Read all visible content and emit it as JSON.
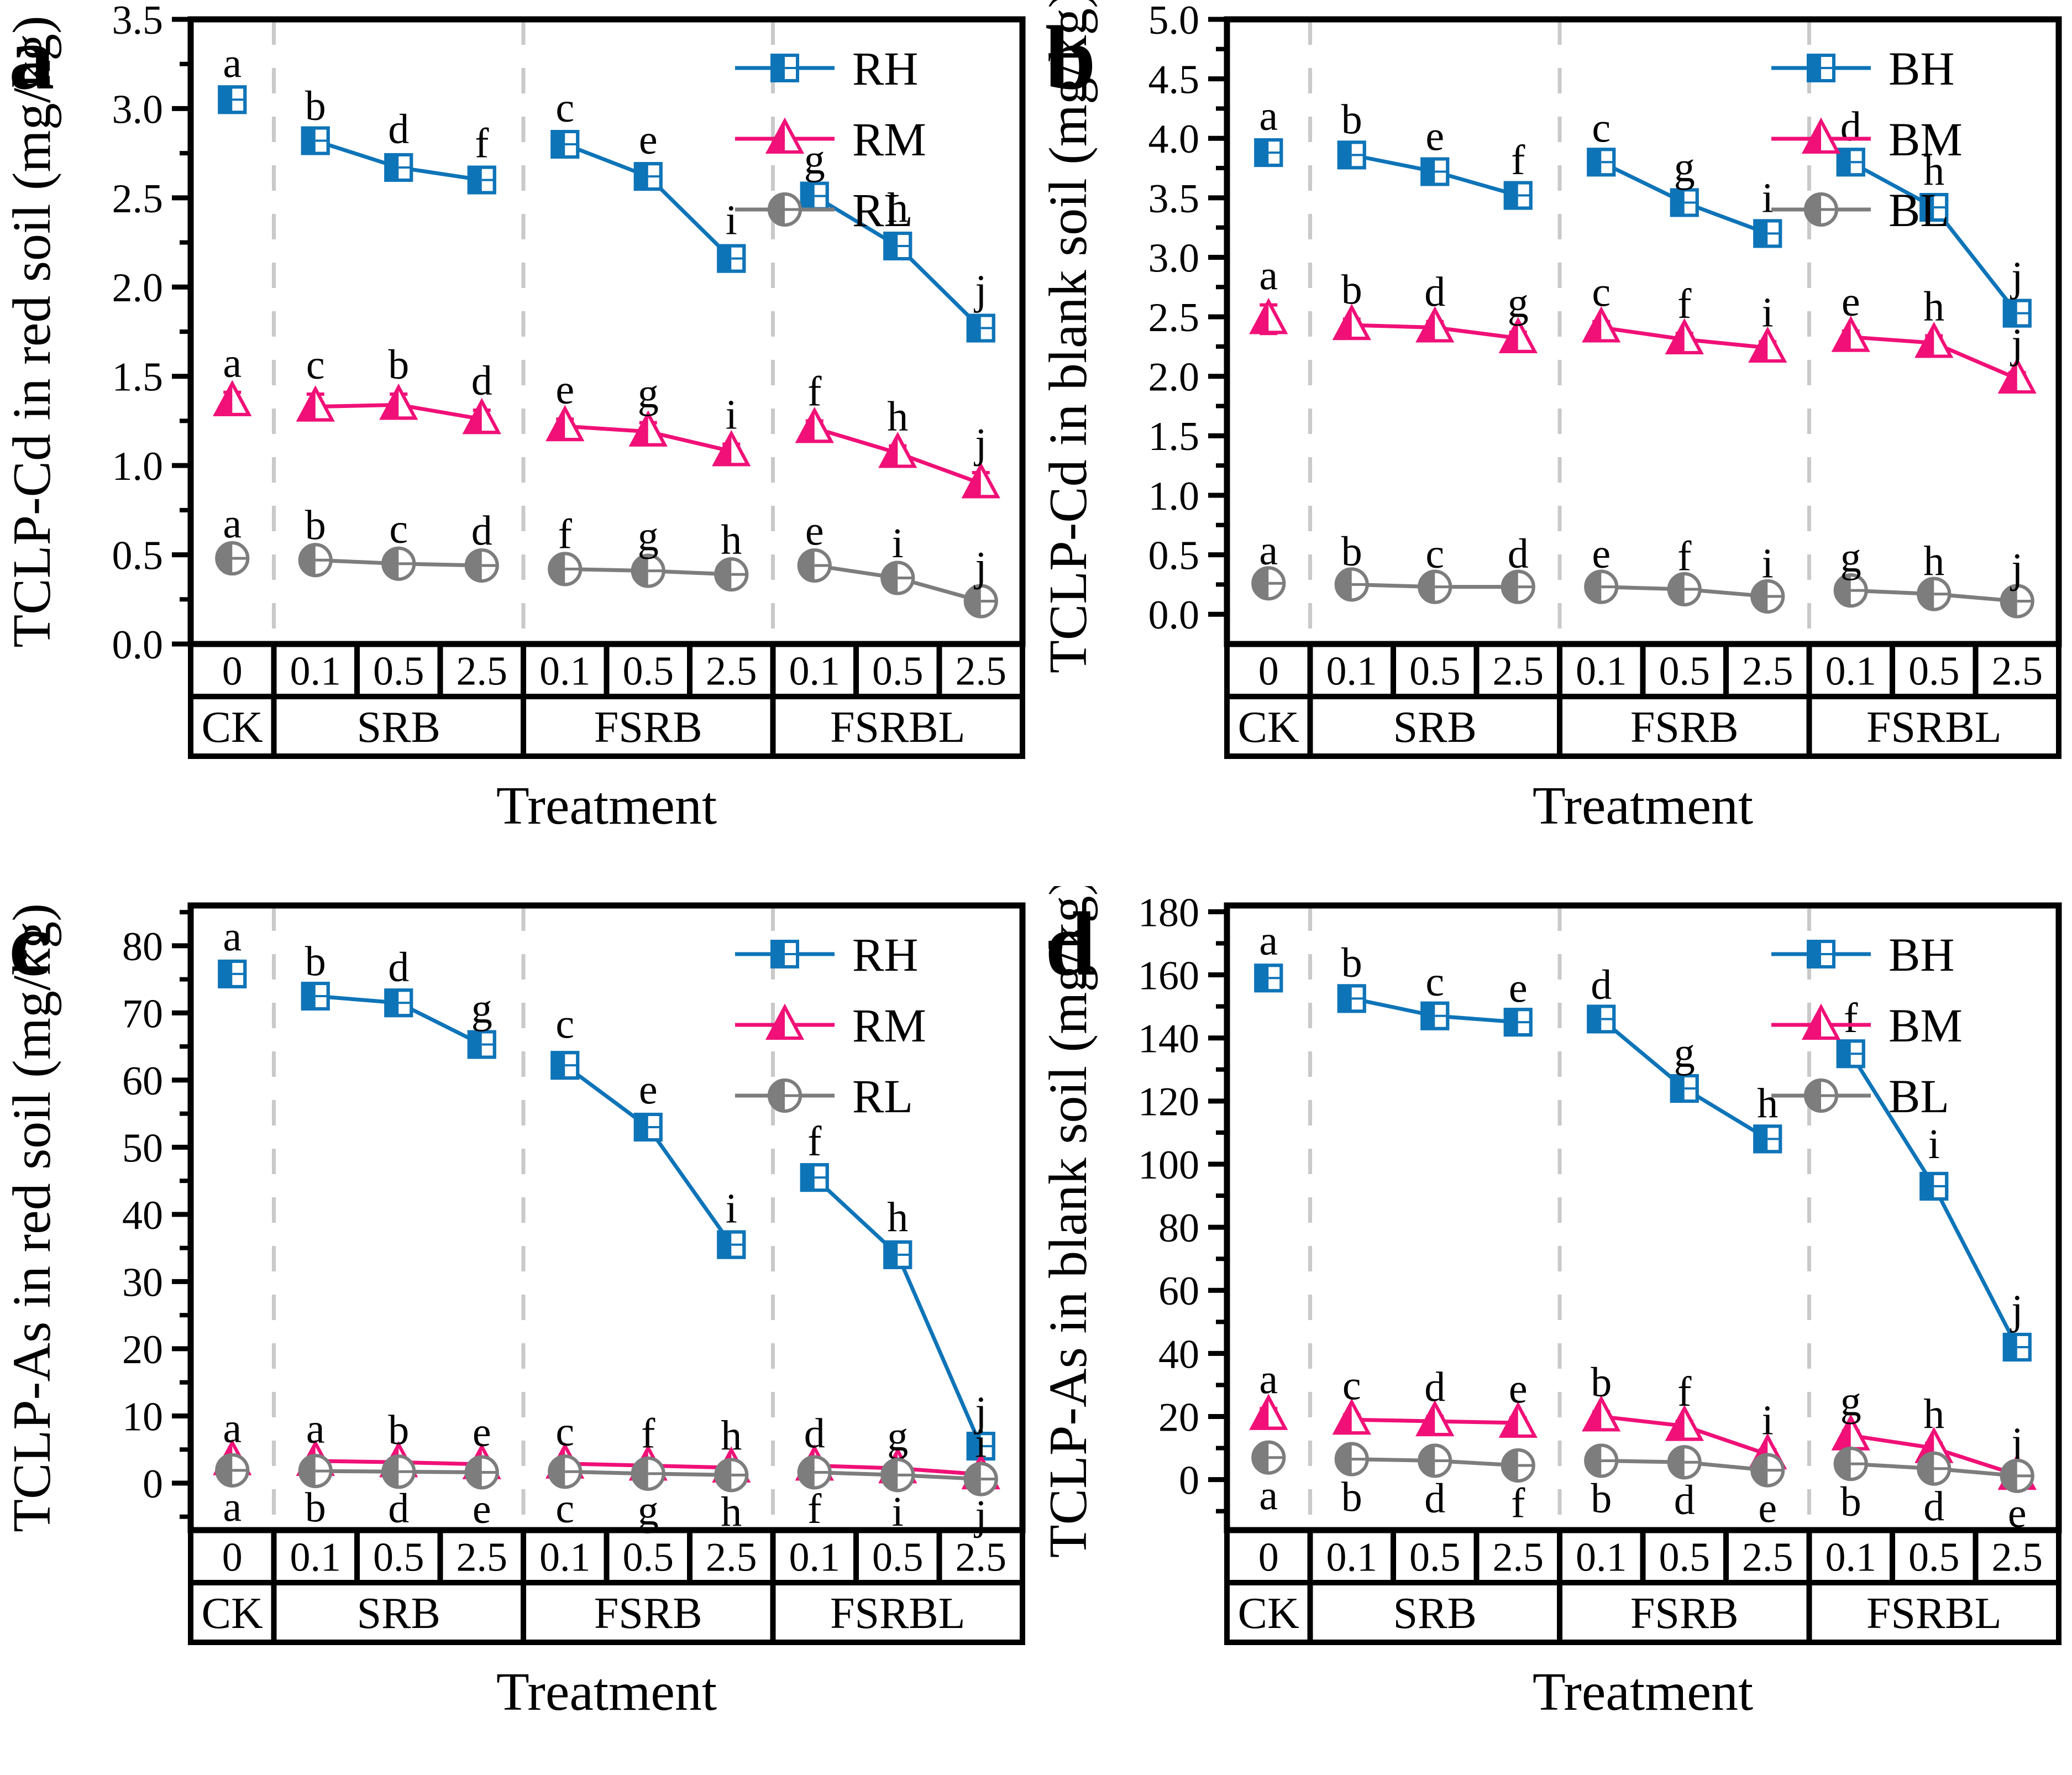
{
  "figure": {
    "x_axis_title": "Treatment",
    "group_row": [
      "CK",
      "SRB",
      "FSRB",
      "FSRBL"
    ],
    "dose_row": [
      "0",
      "0.1",
      "0.5",
      "2.5",
      "0.1",
      "0.5",
      "2.5",
      "0.1",
      "0.5",
      "2.5"
    ],
    "colors": {
      "high_series": "#0e74b8",
      "mid_series": "#f01077",
      "low_series": "#7d7d7d",
      "separator": "#c9c9c9",
      "axis": "#000000",
      "background": "#ffffff"
    }
  },
  "chart_data": [
    {
      "type": "line",
      "tag": "a",
      "ylabel": "TCLP-Cd in red soil (mg/kg)",
      "xlabel": "Treatment",
      "ylim": [
        0,
        3.5
      ],
      "ytick_max": 3.5,
      "ytick_step": 0.5,
      "ytick_decimals": 1,
      "grid": false,
      "legend_position": "top-right",
      "groups": [
        {
          "name": "CK",
          "doses": [
            "0"
          ]
        },
        {
          "name": "SRB",
          "doses": [
            "0.1",
            "0.5",
            "2.5"
          ]
        },
        {
          "name": "FSRB",
          "doses": [
            "0.1",
            "0.5",
            "2.5"
          ]
        },
        {
          "name": "FSRBL",
          "doses": [
            "0.1",
            "0.5",
            "2.5"
          ]
        }
      ],
      "series": [
        {
          "name": "RH",
          "marker": "square",
          "color": "#0e74b8",
          "letter_pos": "above",
          "values": [
            3.05,
            2.82,
            2.67,
            2.6,
            2.8,
            2.62,
            2.16,
            2.51,
            2.23,
            1.77
          ],
          "errors": [
            0.04,
            0.03,
            0.05,
            0.04,
            0.04,
            0.04,
            0.05,
            0.04,
            0.05,
            0.05
          ],
          "letters": [
            "a",
            "b",
            "d",
            "f",
            "c",
            "e",
            "i",
            "g",
            "h",
            "j"
          ]
        },
        {
          "name": "RM",
          "marker": "triangle",
          "color": "#f01077",
          "letter_pos": "above",
          "values": [
            1.36,
            1.33,
            1.34,
            1.26,
            1.22,
            1.19,
            1.08,
            1.21,
            1.07,
            0.9
          ],
          "errors": [
            0.05,
            0.07,
            0.06,
            0.05,
            0.04,
            0.05,
            0.04,
            0.04,
            0.04,
            0.06
          ],
          "letters": [
            "a",
            "c",
            "b",
            "d",
            "e",
            "g",
            "i",
            "f",
            "h",
            "j"
          ]
        },
        {
          "name": "RL",
          "marker": "circle",
          "color": "#7d7d7d",
          "letter_pos": "above",
          "values": [
            0.48,
            0.47,
            0.45,
            0.44,
            0.42,
            0.41,
            0.39,
            0.44,
            0.37,
            0.24
          ],
          "errors": [
            0.03,
            0.03,
            0.03,
            0.03,
            0.03,
            0.03,
            0.03,
            0.03,
            0.03,
            0.03
          ],
          "letters": [
            "a",
            "b",
            "c",
            "d",
            "f",
            "g",
            "h",
            "e",
            "i",
            "j"
          ]
        }
      ]
    },
    {
      "type": "line",
      "tag": "b",
      "ylabel": "TCLP-Cd in blank soil (mg/kg)",
      "xlabel": "Treatment",
      "ylim": [
        -0.25,
        5.0
      ],
      "ytick_max": 5.0,
      "ytick_step": 0.5,
      "ytick_decimals": 1,
      "grid": false,
      "legend_position": "top-right",
      "groups": [
        {
          "name": "CK",
          "doses": [
            "0"
          ]
        },
        {
          "name": "SRB",
          "doses": [
            "0.1",
            "0.5",
            "2.5"
          ]
        },
        {
          "name": "FSRB",
          "doses": [
            "0.1",
            "0.5",
            "2.5"
          ]
        },
        {
          "name": "FSRBL",
          "doses": [
            "0.1",
            "0.5",
            "2.5"
          ]
        }
      ],
      "series": [
        {
          "name": "BH",
          "marker": "square",
          "color": "#0e74b8",
          "letter_pos": "above",
          "values": [
            3.88,
            3.86,
            3.72,
            3.52,
            3.8,
            3.46,
            3.2,
            3.8,
            3.42,
            2.53
          ],
          "errors": [
            0.06,
            0.05,
            0.05,
            0.05,
            0.04,
            0.05,
            0.05,
            0.05,
            0.06,
            0.06
          ],
          "letters": [
            "a",
            "b",
            "e",
            "f",
            "c",
            "g",
            "i",
            "d",
            "h",
            "j"
          ]
        },
        {
          "name": "BM",
          "marker": "triangle",
          "color": "#f01077",
          "letter_pos": "above",
          "values": [
            2.48,
            2.43,
            2.41,
            2.32,
            2.41,
            2.31,
            2.24,
            2.33,
            2.28,
            1.98
          ],
          "errors": [
            0.12,
            0.05,
            0.05,
            0.05,
            0.05,
            0.05,
            0.05,
            0.05,
            0.06,
            0.05
          ],
          "letters": [
            "a",
            "b",
            "d",
            "g",
            "c",
            "f",
            "i",
            "e",
            "h",
            "j"
          ]
        },
        {
          "name": "BL",
          "marker": "circle",
          "color": "#7d7d7d",
          "letter_pos": "above",
          "values": [
            0.26,
            0.25,
            0.23,
            0.23,
            0.23,
            0.21,
            0.15,
            0.2,
            0.17,
            0.11
          ],
          "errors": [
            0.03,
            0.03,
            0.03,
            0.03,
            0.03,
            0.03,
            0.03,
            0.03,
            0.03,
            0.03
          ],
          "letters": [
            "a",
            "b",
            "c",
            "d",
            "e",
            "f",
            "i",
            "g",
            "h",
            "j"
          ]
        }
      ]
    },
    {
      "type": "line",
      "tag": "c",
      "ylabel": "TCLP-As in red soil (mg/kg)",
      "xlabel": "Treatment",
      "ylim": [
        -7,
        86
      ],
      "ytick_max": 80,
      "ytick_step": 10,
      "ytick_decimals": 0,
      "grid": false,
      "legend_position": "top-right",
      "groups": [
        {
          "name": "CK",
          "doses": [
            "0"
          ]
        },
        {
          "name": "SRB",
          "doses": [
            "0.1",
            "0.5",
            "2.5"
          ]
        },
        {
          "name": "FSRB",
          "doses": [
            "0.1",
            "0.5",
            "2.5"
          ]
        },
        {
          "name": "FSRBL",
          "doses": [
            "0.1",
            "0.5",
            "2.5"
          ]
        }
      ],
      "series": [
        {
          "name": "RH",
          "marker": "square",
          "color": "#0e74b8",
          "letter_pos": "above",
          "values": [
            75.8,
            72.5,
            71.5,
            65.3,
            62.2,
            53.0,
            35.5,
            45.5,
            34.0,
            5.5
          ],
          "errors": [
            1.2,
            0.8,
            0.9,
            1.0,
            1.8,
            1.2,
            1.0,
            1.0,
            1.2,
            0.8
          ],
          "letters": [
            "a",
            "b",
            "d",
            "g",
            "c",
            "e",
            "i",
            "f",
            "h",
            "j"
          ]
        },
        {
          "name": "RM",
          "marker": "triangle",
          "color": "#f01077",
          "letter_pos": "above",
          "values": [
            3.4,
            3.3,
            3.1,
            2.8,
            2.9,
            2.6,
            2.3,
            2.6,
            2.2,
            1.3
          ],
          "errors": [
            0.4,
            0.4,
            0.4,
            0.4,
            0.4,
            0.4,
            0.4,
            0.4,
            0.4,
            0.3
          ],
          "letters": [
            "a",
            "a",
            "b",
            "e",
            "c",
            "f",
            "h",
            "d",
            "g",
            "i"
          ]
        },
        {
          "name": "RL",
          "marker": "circle",
          "color": "#7d7d7d",
          "letter_pos": "below",
          "values": [
            1.9,
            1.8,
            1.7,
            1.6,
            1.7,
            1.4,
            1.2,
            1.6,
            1.2,
            0.6
          ],
          "errors": [
            0.3,
            0.3,
            0.3,
            0.3,
            0.3,
            0.3,
            0.3,
            0.3,
            0.3,
            0.2
          ],
          "letters": [
            "a",
            "b",
            "d",
            "e",
            "c",
            "g",
            "h",
            "f",
            "i",
            "j"
          ]
        }
      ]
    },
    {
      "type": "line",
      "tag": "d",
      "ylabel": "TCLP-As in blank soil (mg/kg)",
      "xlabel": "Treatment",
      "ylim": [
        -16,
        182
      ],
      "ytick_max": 180,
      "ytick_step": 20,
      "ytick_decimals": 0,
      "grid": false,
      "legend_position": "top-right",
      "groups": [
        {
          "name": "CK",
          "doses": [
            "0"
          ]
        },
        {
          "name": "SRB",
          "doses": [
            "0.1",
            "0.5",
            "2.5"
          ]
        },
        {
          "name": "FSRB",
          "doses": [
            "0.1",
            "0.5",
            "2.5"
          ]
        },
        {
          "name": "FSRBL",
          "doses": [
            "0.1",
            "0.5",
            "2.5"
          ]
        }
      ],
      "series": [
        {
          "name": "BH",
          "marker": "square",
          "color": "#0e74b8",
          "letter_pos": "above",
          "values": [
            159,
            152.5,
            147,
            145,
            146,
            124,
            108,
            135,
            93,
            42
          ],
          "errors": [
            2.5,
            2.0,
            1.5,
            1.5,
            1.5,
            2.0,
            2.0,
            2.0,
            4.0,
            2.5
          ],
          "letters": [
            "a",
            "b",
            "c",
            "e",
            "d",
            "g",
            "h",
            "f",
            "i",
            "j"
          ]
        },
        {
          "name": "BM",
          "marker": "triangle",
          "color": "#f01077",
          "letter_pos": "above",
          "values": [
            20.5,
            19,
            18.5,
            18,
            20,
            17,
            8,
            14,
            10,
            1.5
          ],
          "errors": [
            2.0,
            1.5,
            1.5,
            1.5,
            1.5,
            1.5,
            1.5,
            1.5,
            1.5,
            1.0
          ],
          "letters": [
            "a",
            "c",
            "d",
            "e",
            "b",
            "f",
            "i",
            "g",
            "h",
            "j"
          ]
        },
        {
          "name": "BL",
          "marker": "circle",
          "color": "#7d7d7d",
          "letter_pos": "below",
          "values": [
            7,
            6.5,
            6,
            4.5,
            6,
            5.5,
            3,
            5,
            3.5,
            1.2
          ],
          "errors": [
            1.0,
            1.0,
            1.0,
            1.0,
            1.0,
            1.0,
            1.0,
            1.0,
            1.0,
            0.8
          ],
          "letters": [
            "a",
            "b",
            "d",
            "f",
            "b",
            "d",
            "e",
            "b",
            "d",
            "e"
          ]
        }
      ]
    }
  ]
}
